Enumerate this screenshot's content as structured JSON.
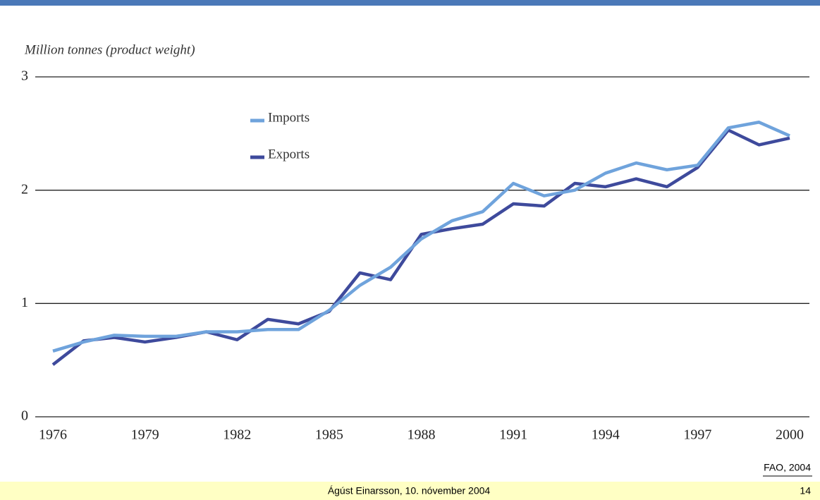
{
  "chart_data": {
    "type": "line",
    "ylabel": "Million tonnes (product weight)",
    "x": [
      1976,
      1977,
      1978,
      1979,
      1980,
      1981,
      1982,
      1983,
      1984,
      1985,
      1986,
      1987,
      1988,
      1989,
      1990,
      1991,
      1992,
      1993,
      1994,
      1995,
      1996,
      1997,
      1998,
      1999,
      2000
    ],
    "series": [
      {
        "name": "Imports",
        "color": "#6fa3dc",
        "values": [
          0.58,
          0.66,
          0.72,
          0.71,
          0.71,
          0.75,
          0.75,
          0.77,
          0.77,
          0.94,
          1.16,
          1.32,
          1.57,
          1.73,
          1.81,
          2.06,
          1.95,
          2.0,
          2.15,
          2.24,
          2.18,
          2.22,
          2.55,
          2.6,
          2.48
        ]
      },
      {
        "name": "Exports",
        "color": "#3e4a9c",
        "values": [
          0.46,
          0.67,
          0.7,
          0.66,
          0.7,
          0.75,
          0.68,
          0.86,
          0.82,
          0.93,
          1.27,
          1.21,
          1.61,
          1.66,
          1.7,
          1.88,
          1.86,
          2.06,
          2.03,
          2.1,
          2.03,
          2.2,
          2.53,
          2.4,
          2.46
        ]
      }
    ],
    "xlim": [
      1976,
      2000
    ],
    "xticks": [
      1976,
      1979,
      1982,
      1985,
      1988,
      1991,
      1994,
      1997,
      2000
    ],
    "ylim": [
      0,
      3
    ],
    "yticks": [
      0,
      1,
      2,
      3
    ],
    "grid": true
  },
  "footer": {
    "source": "FAO, 2004",
    "author": "Ágúst Einarsson, 10. nóvember 2004",
    "page": "14"
  }
}
